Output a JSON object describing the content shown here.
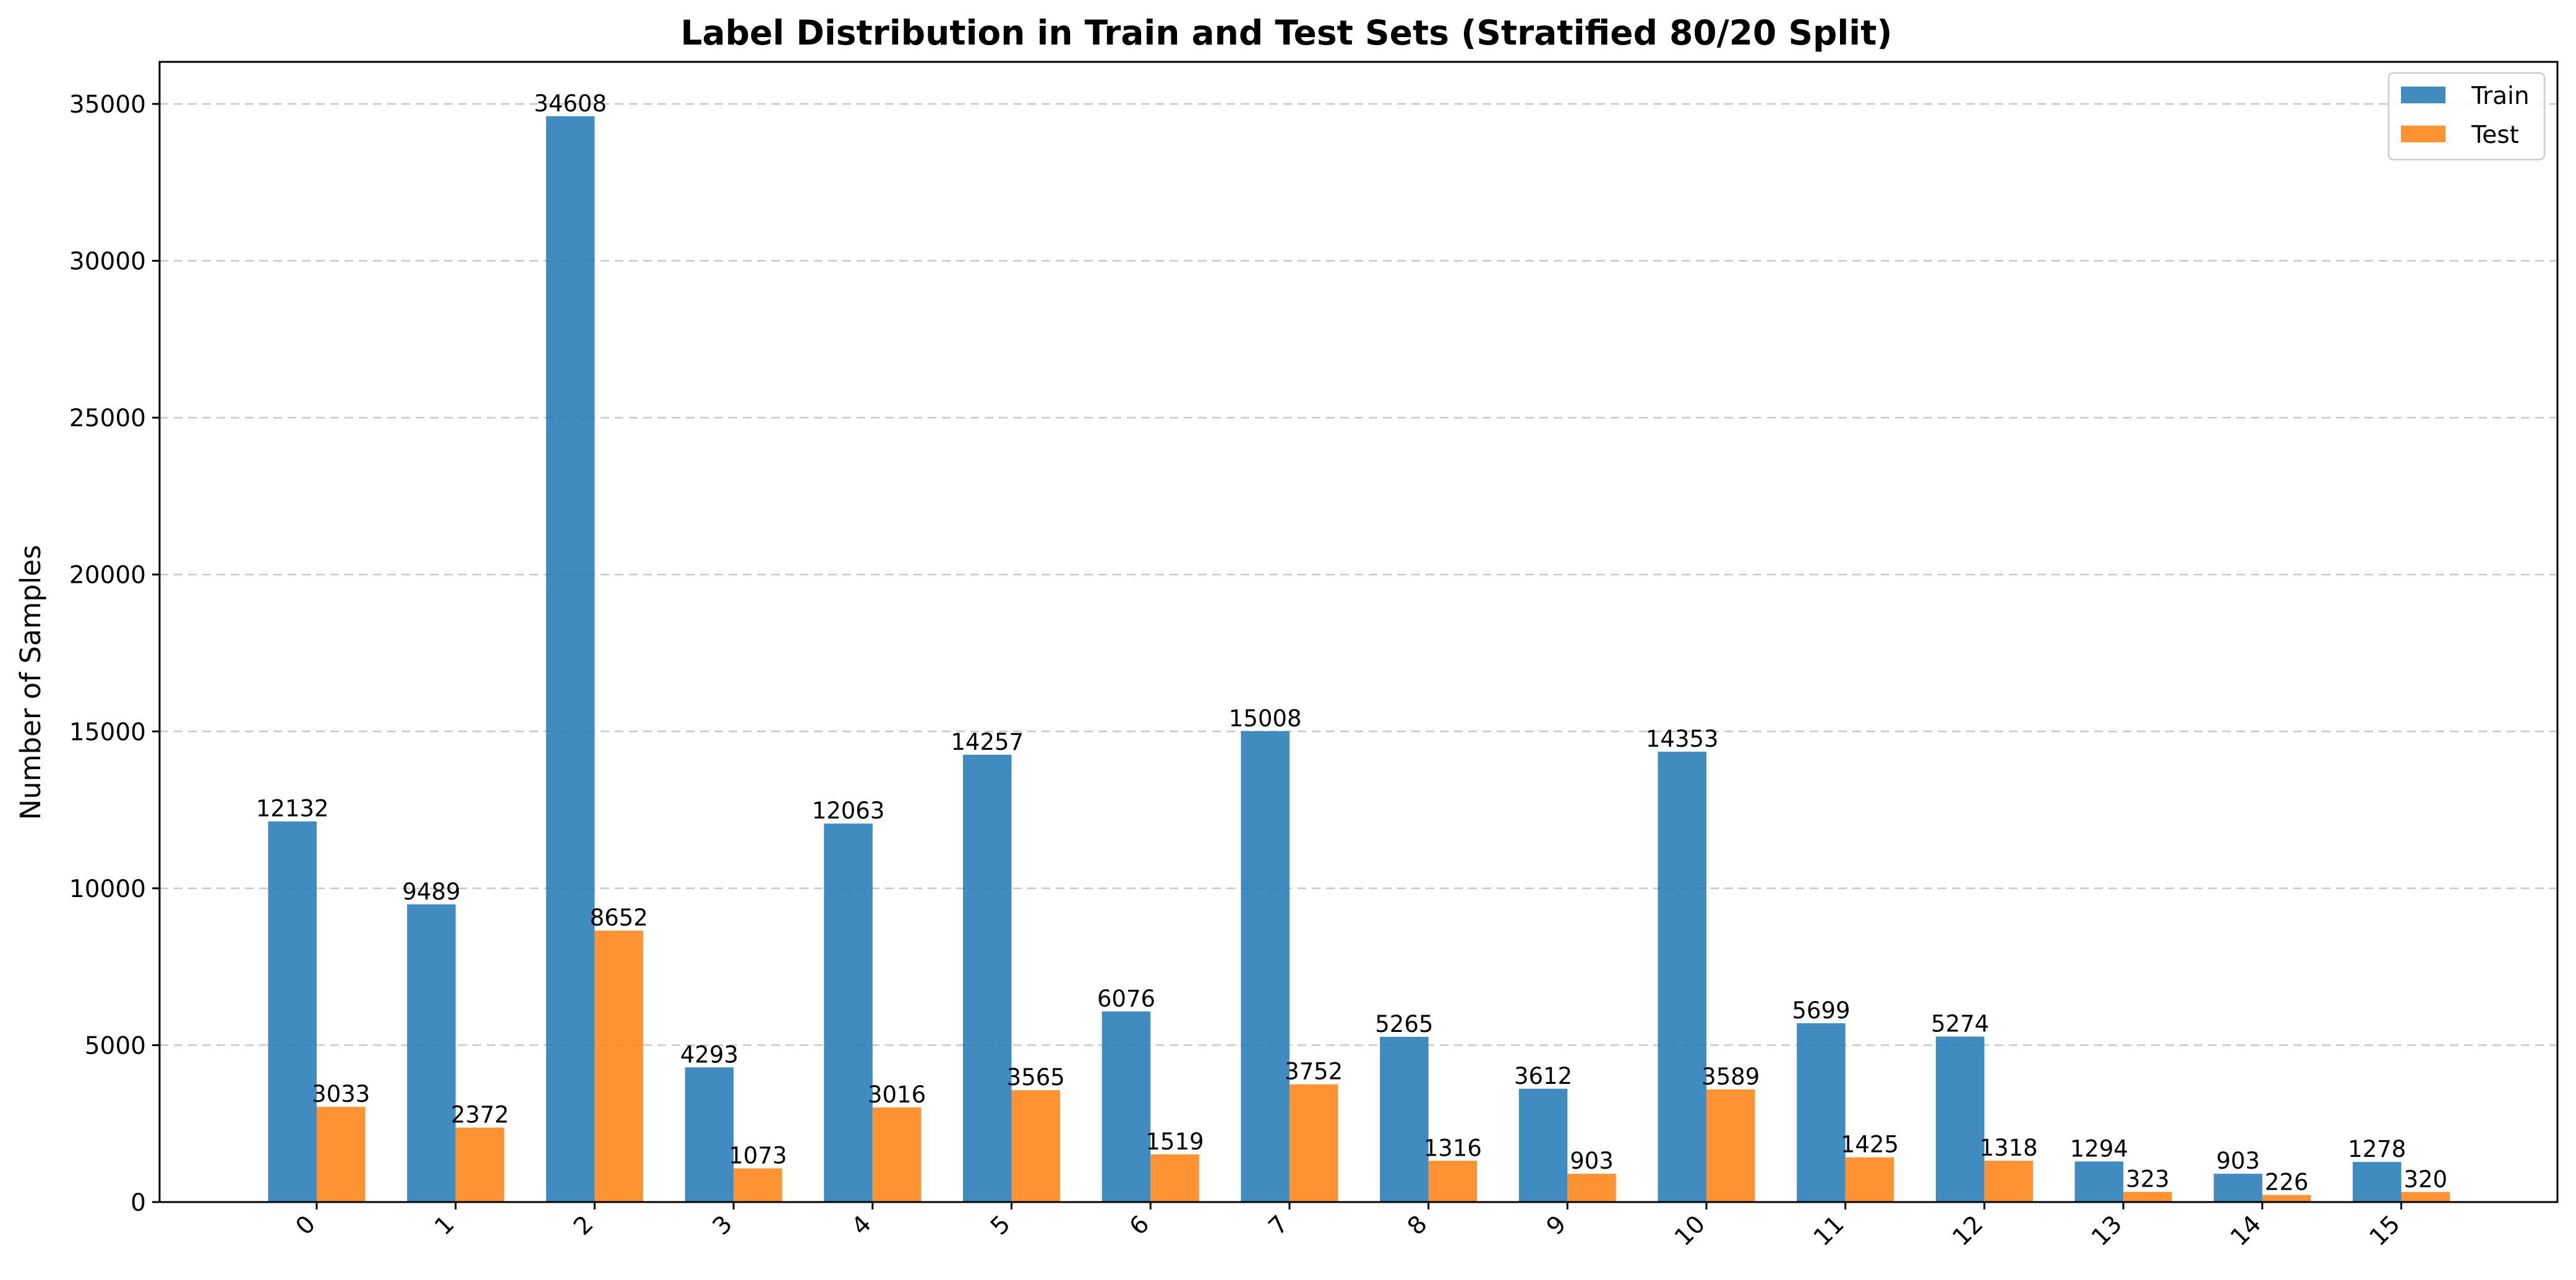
{
  "chart_data": {
    "type": "bar",
    "title": "Label Distribution in Train and Test Sets (Stratified 80/20 Split)",
    "xlabel": "",
    "ylabel": "Number of Samples",
    "categories": [
      "0",
      "1",
      "2",
      "3",
      "4",
      "5",
      "6",
      "7",
      "8",
      "9",
      "10",
      "11",
      "12",
      "13",
      "14",
      "15"
    ],
    "series": [
      {
        "name": "Train",
        "color": "#1f77b4",
        "values": [
          12132,
          9489,
          34608,
          4293,
          12063,
          14257,
          6076,
          15008,
          5265,
          3612,
          14353,
          5699,
          5274,
          1294,
          903,
          1278
        ]
      },
      {
        "name": "Test",
        "color": "#ff7f0e",
        "values": [
          3033,
          2372,
          8652,
          1073,
          3016,
          3565,
          1519,
          3752,
          1316,
          903,
          3589,
          1425,
          1318,
          323,
          226,
          320
        ]
      }
    ],
    "ylim": [
      0,
      36340
    ],
    "yticks": [
      0,
      5000,
      10000,
      15000,
      20000,
      25000,
      30000,
      35000
    ],
    "grid": "y-dashed",
    "legend_position": "top-right",
    "xtick_rotation": 45
  }
}
